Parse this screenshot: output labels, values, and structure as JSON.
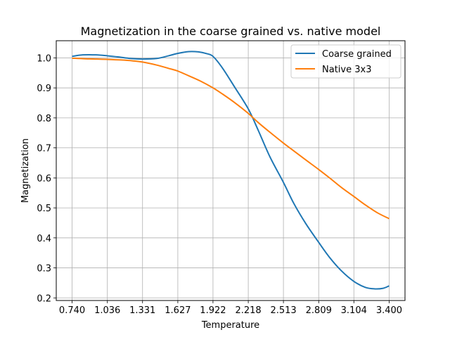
{
  "chart_data": {
    "type": "line",
    "title": "Magnetization in the coarse grained vs. native model",
    "xlabel": "Temperature",
    "ylabel": "Magnetization",
    "xlim": [
      0.607,
      3.533
    ],
    "ylim": [
      0.1913,
      1.0572
    ],
    "xticks": [
      "0.740",
      "1.036",
      "1.331",
      "1.627",
      "1.922",
      "2.218",
      "2.513",
      "2.809",
      "3.104",
      "3.400"
    ],
    "xtick_values": [
      0.74,
      1.036,
      1.331,
      1.627,
      1.922,
      2.218,
      2.513,
      2.809,
      3.104,
      3.4
    ],
    "yticks": [
      "0.2",
      "0.3",
      "0.4",
      "0.5",
      "0.6",
      "0.7",
      "0.8",
      "0.9",
      "1.0"
    ],
    "ytick_values": [
      0.2,
      0.3,
      0.4,
      0.5,
      0.6,
      0.7,
      0.8,
      0.9,
      1.0
    ],
    "grid": true,
    "legend": "top-right",
    "series": [
      {
        "name": "Coarse grained",
        "color": "#1f77b4",
        "x": [
          0.74,
          0.83,
          0.94,
          1.036,
          1.13,
          1.23,
          1.331,
          1.45,
          1.55,
          1.627,
          1.72,
          1.8,
          1.87,
          1.922,
          2.0,
          2.1,
          2.218,
          2.3,
          2.4,
          2.513,
          2.6,
          2.7,
          2.809,
          2.9,
          3.0,
          3.104,
          3.2,
          3.28,
          3.35,
          3.4
        ],
        "y": [
          1.005,
          1.01,
          1.01,
          1.007,
          1.003,
          0.998,
          0.996,
          0.998,
          1.007,
          1.015,
          1.021,
          1.02,
          1.014,
          1.005,
          0.967,
          0.905,
          0.83,
          0.76,
          0.67,
          0.585,
          0.515,
          0.448,
          0.385,
          0.335,
          0.29,
          0.255,
          0.235,
          0.23,
          0.232,
          0.24
        ]
      },
      {
        "name": "Native 3x3",
        "color": "#ff7f0e",
        "x": [
          0.74,
          0.85,
          0.95,
          1.036,
          1.15,
          1.25,
          1.331,
          1.45,
          1.55,
          1.627,
          1.72,
          1.82,
          1.922,
          2.0,
          2.1,
          2.218,
          2.3,
          2.4,
          2.513,
          2.6,
          2.7,
          2.809,
          2.9,
          3.0,
          3.104,
          3.2,
          3.3,
          3.4
        ],
        "y": [
          0.999,
          0.997,
          0.996,
          0.995,
          0.993,
          0.99,
          0.986,
          0.976,
          0.965,
          0.956,
          0.94,
          0.922,
          0.9,
          0.88,
          0.852,
          0.815,
          0.785,
          0.752,
          0.716,
          0.69,
          0.66,
          0.628,
          0.6,
          0.568,
          0.538,
          0.51,
          0.484,
          0.464
        ]
      }
    ]
  }
}
